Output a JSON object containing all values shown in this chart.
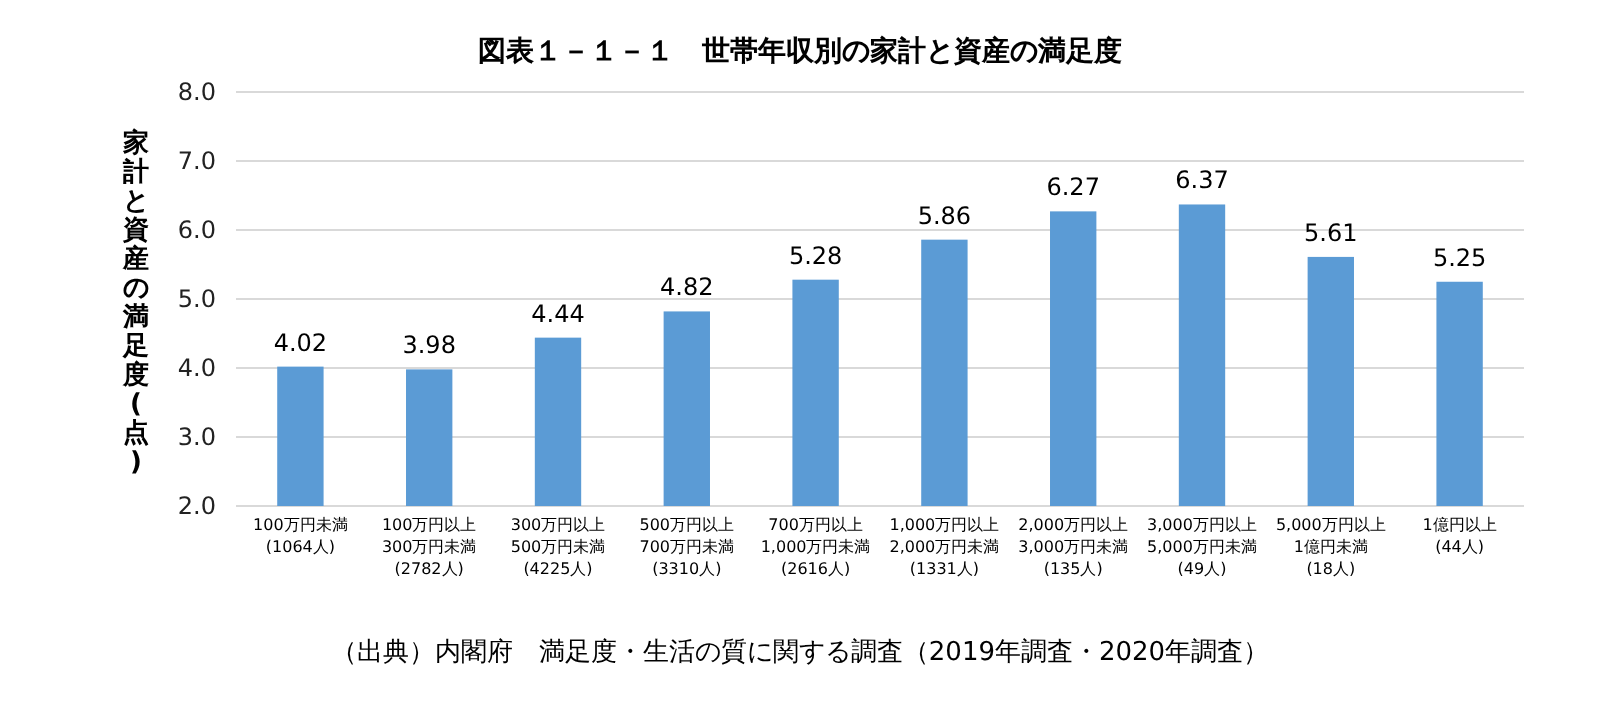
{
  "chart_data": {
    "type": "bar",
    "title": "図表１－１－１　世帯年収別の家計と資産の満足度",
    "ylabel": "家計と資産の満足度(点)",
    "categories": [
      "100万円未満\n(1064人)",
      "100万円以上\n300万円未満\n(2782人)",
      "300万円以上\n500万円未満\n(4225人)",
      "500万円以上\n700万円未満\n(3310人)",
      "700万円以上\n1,000万円未満\n(2616人)",
      "1,000万円以上\n2,000万円未満\n(1331人)",
      "2,000万円以上\n3,000万円未満\n(135人)",
      "3,000万円以上\n5,000万円未満\n(49人)",
      "5,000万円以上\n1億円未満\n(18人)",
      "1億円以上\n(44人)"
    ],
    "values": [
      4.02,
      3.98,
      4.44,
      4.82,
      5.28,
      5.86,
      6.27,
      6.37,
      5.61,
      5.25
    ],
    "color": "#5b9bd5",
    "data_labels": true,
    "grid": "y",
    "ylim": [
      2,
      8
    ],
    "yticks": [
      {
        "value": 2,
        "label": "2.0"
      },
      {
        "value": 3,
        "label": "3.0"
      },
      {
        "value": 4,
        "label": "4.0"
      },
      {
        "value": 5,
        "label": "5.0"
      },
      {
        "value": 6,
        "label": "6.0"
      },
      {
        "value": 7,
        "label": "7.0"
      },
      {
        "value": 8,
        "label": "8.0"
      }
    ],
    "annotations": [
      "（出典）内閣府　満足度・生活の質に関する調査（2019年調査・2020年調査）"
    ]
  }
}
